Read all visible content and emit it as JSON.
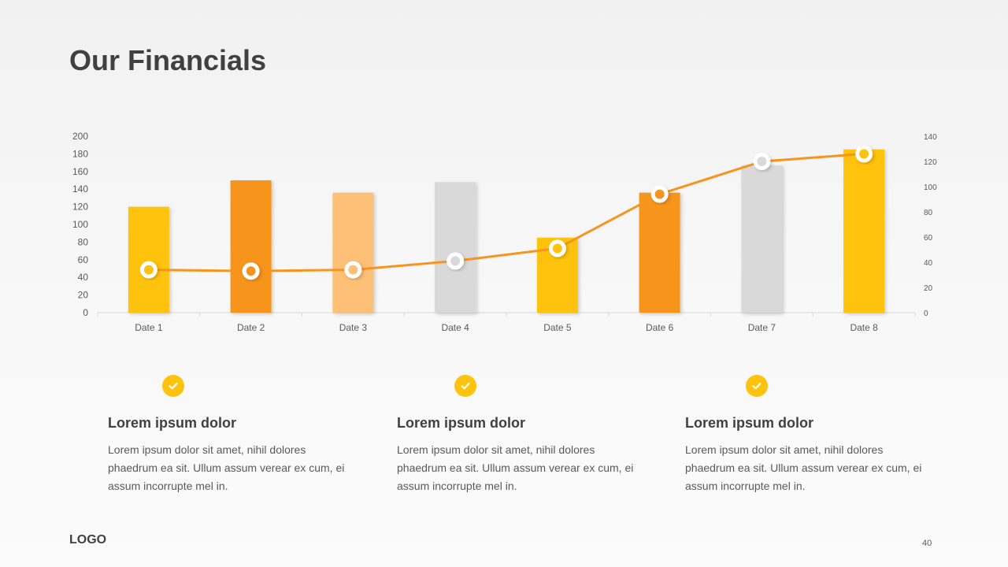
{
  "slide": {
    "title": "Our Financials",
    "logo": "LOGO",
    "page_number": "40"
  },
  "features": [
    {
      "icon": "check-circle-icon",
      "title": "Lorem ipsum dolor",
      "text": "Lorem ipsum dolor sit amet, nihil dolores phaedrum ea sit. Ullum assum verear ex cum, ei assum incorrupte mel in."
    },
    {
      "icon": "check-circle-icon",
      "title": "Lorem ipsum dolor",
      "text": "Lorem ipsum dolor sit amet, nihil dolores phaedrum ea sit. Ullum assum verear ex cum, ei assum incorrupte mel in."
    },
    {
      "icon": "check-circle-icon",
      "title": "Lorem ipsum dolor",
      "text": "Lorem ipsum dolor sit amet, nihil dolores phaedrum ea sit. Ullum assum verear ex cum, ei assum incorrupte mel in."
    }
  ],
  "colors": {
    "accent_yellow": "#ffc20e",
    "accent_orange": "#f7941d",
    "light_orange": "#fdc076",
    "gray": "#d9d9d9",
    "line": "#f7941d"
  },
  "chart_data": {
    "type": "bar",
    "categories": [
      "Date 1",
      "Date 2",
      "Date 3",
      "Date 4",
      "Date 5",
      "Date 6",
      "Date 7",
      "Date 8"
    ],
    "series": [
      {
        "type": "bar",
        "axis": "left",
        "values": [
          120,
          150,
          136,
          148,
          85,
          136,
          167,
          185
        ],
        "colors": [
          "#ffc20e",
          "#f7941d",
          "#fdc076",
          "#d9d9d9",
          "#ffc20e",
          "#f7941d",
          "#d9d9d9",
          "#ffc20e"
        ]
      },
      {
        "type": "line",
        "axis": "right",
        "values": [
          34,
          33,
          34,
          41,
          51,
          94,
          120,
          126
        ],
        "marker_colors": [
          "#ffc20e",
          "#f7941d",
          "#fdc076",
          "#d9d9d9",
          "#ffc20e",
          "#f7941d",
          "#d9d9d9",
          "#ffc20e"
        ],
        "color": "#f7941d"
      }
    ],
    "y_left": {
      "min": 0,
      "max": 200,
      "ticks": [
        0,
        20,
        40,
        60,
        80,
        100,
        120,
        140,
        160,
        180,
        200
      ]
    },
    "y_right": {
      "min": 0,
      "max": 140,
      "ticks": [
        0,
        20,
        40,
        60,
        80,
        100,
        120,
        140
      ]
    },
    "grid": false,
    "legend": "none"
  }
}
